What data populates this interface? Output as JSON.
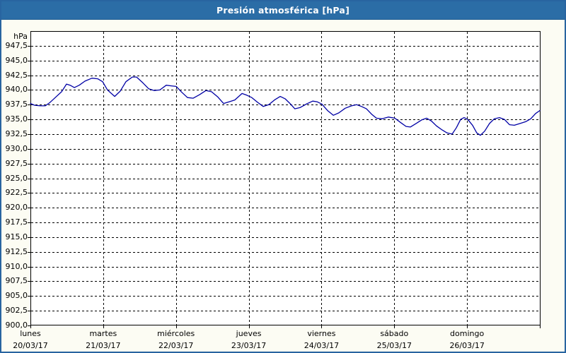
{
  "window": {
    "title": "Presión atmosférica [hPa]"
  },
  "colors": {
    "border": "#2864A0",
    "titlebar_bg": "#2B6DA6",
    "titlebar_text": "#FFFFFF",
    "page_bg": "#FCFCF3",
    "plot_bg": "#FFFFFF",
    "frame": "#000000",
    "grid": "#000000",
    "line": "#0000A5",
    "text": "#000000"
  },
  "chart_data": {
    "type": "line",
    "title": "Presión atmosférica [hPa]",
    "ylabel": "hPa",
    "xlabel": "",
    "ylim": [
      900,
      950
    ],
    "ytick_step": 2.5,
    "grid": "dashed",
    "legend_position": "none",
    "x_hours_total": 168,
    "y_tick_values": [
      947.5,
      945.0,
      942.5,
      940.0,
      937.5,
      935.0,
      932.5,
      930.0,
      927.5,
      925.0,
      922.5,
      920.0,
      917.5,
      915.0,
      912.5,
      910.0,
      907.5,
      905.0,
      902.5,
      900.0
    ],
    "y_tick_labels": [
      "947,5",
      "945,0",
      "942,5",
      "940,0",
      "937,5",
      "935,0",
      "932,5",
      "930,0",
      "927,5",
      "925,0",
      "922,5",
      "920,0",
      "917,5",
      "915,0",
      "912,5",
      "910,0",
      "907,5",
      "905,0",
      "902,5",
      "900,0"
    ],
    "x_days": [
      {
        "name": "lunes",
        "date": "20/03/17"
      },
      {
        "name": "martes",
        "date": "21/03/17"
      },
      {
        "name": "miércoles",
        "date": "22/03/17"
      },
      {
        "name": "jueves",
        "date": "23/03/17"
      },
      {
        "name": "viernes",
        "date": "24/03/17"
      },
      {
        "name": "sábado",
        "date": "25/03/17"
      },
      {
        "name": "domingo",
        "date": "26/03/17"
      }
    ],
    "series": [
      {
        "name": "Presión atmosférica",
        "color": "#0000A5",
        "points": [
          [
            0.0,
            937.7
          ],
          [
            1.4,
            937.4
          ],
          [
            3.3,
            937.3
          ],
          [
            4.9,
            937.3
          ],
          [
            6.3,
            937.8
          ],
          [
            8.2,
            938.7
          ],
          [
            10.3,
            939.7
          ],
          [
            11.9,
            941.0
          ],
          [
            13.1,
            940.8
          ],
          [
            14.5,
            940.4
          ],
          [
            16.1,
            940.8
          ],
          [
            18.0,
            941.5
          ],
          [
            20.3,
            942.0
          ],
          [
            22.2,
            941.9
          ],
          [
            23.8,
            941.4
          ],
          [
            25.4,
            940.0
          ],
          [
            27.8,
            938.9
          ],
          [
            29.6,
            939.8
          ],
          [
            31.5,
            941.4
          ],
          [
            33.6,
            942.2
          ],
          [
            35.0,
            942.2
          ],
          [
            37.1,
            941.2
          ],
          [
            39.0,
            940.2
          ],
          [
            40.8,
            939.9
          ],
          [
            42.7,
            940.0
          ],
          [
            44.8,
            940.8
          ],
          [
            46.4,
            940.7
          ],
          [
            48.1,
            940.6
          ],
          [
            49.9,
            939.6
          ],
          [
            51.8,
            938.7
          ],
          [
            53.7,
            938.6
          ],
          [
            55.8,
            939.2
          ],
          [
            57.9,
            939.9
          ],
          [
            59.7,
            939.7
          ],
          [
            61.8,
            938.8
          ],
          [
            63.7,
            937.7
          ],
          [
            65.6,
            938.0
          ],
          [
            67.4,
            938.3
          ],
          [
            69.8,
            939.4
          ],
          [
            71.4,
            939.1
          ],
          [
            73.0,
            938.7
          ],
          [
            74.9,
            937.9
          ],
          [
            76.8,
            937.2
          ],
          [
            78.6,
            937.5
          ],
          [
            80.5,
            938.3
          ],
          [
            82.4,
            938.9
          ],
          [
            84.0,
            938.5
          ],
          [
            85.6,
            937.7
          ],
          [
            87.2,
            936.8
          ],
          [
            88.9,
            937.0
          ],
          [
            91.0,
            937.6
          ],
          [
            93.1,
            938.1
          ],
          [
            94.5,
            938.0
          ],
          [
            96.1,
            937.6
          ],
          [
            98.0,
            936.5
          ],
          [
            99.9,
            935.7
          ],
          [
            101.7,
            936.1
          ],
          [
            103.8,
            936.9
          ],
          [
            105.9,
            937.3
          ],
          [
            107.6,
            937.5
          ],
          [
            109.2,
            937.2
          ],
          [
            110.8,
            936.8
          ],
          [
            112.5,
            935.9
          ],
          [
            114.1,
            935.2
          ],
          [
            116.0,
            935.1
          ],
          [
            118.1,
            935.4
          ],
          [
            120.2,
            935.2
          ],
          [
            122.0,
            934.5
          ],
          [
            123.9,
            933.8
          ],
          [
            125.3,
            933.7
          ],
          [
            127.2,
            934.3
          ],
          [
            129.0,
            934.9
          ],
          [
            130.7,
            935.2
          ],
          [
            132.3,
            934.7
          ],
          [
            133.9,
            933.9
          ],
          [
            135.8,
            933.2
          ],
          [
            137.4,
            932.7
          ],
          [
            139.1,
            932.5
          ],
          [
            140.5,
            933.6
          ],
          [
            141.9,
            935.0
          ],
          [
            143.0,
            935.3
          ],
          [
            144.2,
            935.0
          ],
          [
            145.8,
            934.0
          ],
          [
            147.2,
            932.7
          ],
          [
            148.4,
            932.3
          ],
          [
            149.8,
            933.0
          ],
          [
            151.4,
            934.3
          ],
          [
            153.0,
            935.1
          ],
          [
            154.7,
            935.3
          ],
          [
            156.3,
            935.0
          ],
          [
            158.0,
            934.1
          ],
          [
            159.6,
            934.0
          ],
          [
            161.5,
            934.3
          ],
          [
            163.3,
            934.6
          ],
          [
            165.0,
            935.1
          ],
          [
            166.6,
            936.0
          ],
          [
            168.0,
            936.5
          ]
        ]
      }
    ]
  }
}
